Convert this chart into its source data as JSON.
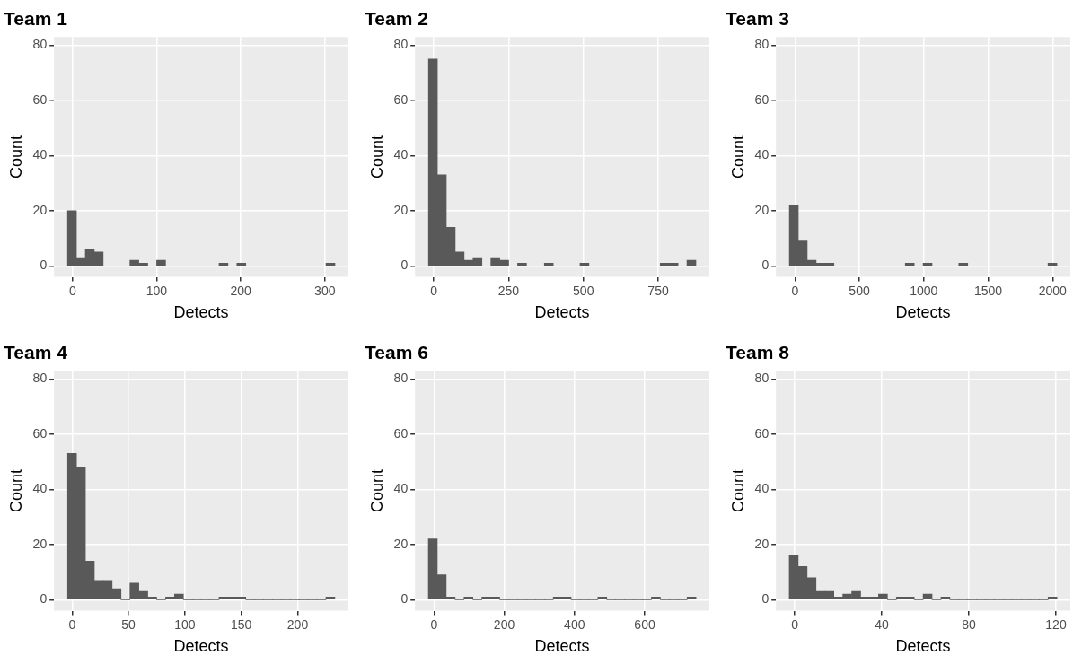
{
  "chart_data": [
    {
      "type": "histogram",
      "title": "Team 1",
      "xlabel": "Detects",
      "ylabel": "Count",
      "color": "#595959",
      "grid": true,
      "xlim": [
        -22,
        328
      ],
      "xticks": [
        0,
        100,
        200,
        300
      ],
      "ylim": [
        -4,
        83
      ],
      "yticks": [
        0,
        20,
        40,
        60,
        80
      ],
      "bins": [
        -6,
        4.6,
        15.2,
        25.8,
        36.4,
        47,
        57.6,
        68.2,
        78.8,
        89.4,
        100,
        110.6,
        121.2,
        131.8,
        142.4,
        153,
        163.6,
        174.2,
        184.8,
        195.4,
        206,
        216.6,
        227.2,
        237.8,
        248.4,
        259,
        269.6,
        280.2,
        290.8,
        301.4,
        312
      ],
      "values": [
        20,
        3,
        6,
        5,
        0,
        0,
        0,
        2,
        1,
        0,
        2,
        0,
        0,
        0,
        0,
        0,
        0,
        1,
        0,
        1,
        0,
        0,
        0,
        0,
        0,
        0,
        0,
        0,
        0,
        1
      ]
    },
    {
      "type": "histogram",
      "title": "Team 2",
      "xlabel": "Detects",
      "ylabel": "Count",
      "color": "#595959",
      "grid": true,
      "xlim": [
        -63,
        921
      ],
      "xticks": [
        0,
        250,
        500,
        750
      ],
      "ylim": [
        -4,
        83
      ],
      "yticks": [
        0,
        20,
        40,
        60,
        80
      ],
      "bins": [
        -18,
        11.8,
        41.6,
        71.4,
        101.2,
        131,
        160.8,
        190.6,
        220.4,
        250.2,
        280,
        309.8,
        339.6,
        369.4,
        399.2,
        429,
        458.8,
        488.6,
        518.4,
        548.2,
        578,
        607.8,
        637.6,
        667.4,
        697.2,
        727,
        756.8,
        786.6,
        816.4,
        846.2,
        876
      ],
      "values": [
        75,
        33,
        14,
        5,
        2,
        3,
        0,
        3,
        2,
        0,
        1,
        0,
        0,
        1,
        0,
        0,
        0,
        1,
        0,
        0,
        0,
        0,
        0,
        0,
        0,
        0,
        1,
        1,
        0,
        2
      ]
    },
    {
      "type": "histogram",
      "title": "Team 3",
      "xlabel": "Detects",
      "ylabel": "Count",
      "color": "#595959",
      "grid": true,
      "xlim": [
        -147,
        2137
      ],
      "xticks": [
        0,
        500,
        1000,
        1500,
        2000
      ],
      "ylim": [
        -4,
        83
      ],
      "yticks": [
        0,
        20,
        40,
        60,
        80
      ],
      "bins": [
        -43,
        26.2,
        95.4,
        164.6,
        233.8,
        303,
        372.2,
        441.4,
        510.6,
        579.8,
        649,
        718.2,
        787.4,
        856.6,
        925.8,
        995,
        1064.2,
        1133.4,
        1202.6,
        1271.8,
        1341,
        1410.2,
        1479.4,
        1548.6,
        1617.8,
        1687,
        1756.2,
        1825.4,
        1894.6,
        1963.8,
        2033
      ],
      "values": [
        22,
        9,
        2,
        1,
        1,
        0,
        0,
        0,
        0,
        0,
        0,
        0,
        0,
        1,
        0,
        1,
        0,
        0,
        0,
        1,
        0,
        0,
        0,
        0,
        0,
        0,
        0,
        0,
        0,
        1
      ]
    },
    {
      "type": "histogram",
      "title": "Team 4",
      "xlabel": "Detects",
      "ylabel": "Count",
      "color": "#595959",
      "grid": true,
      "xlim": [
        -16,
        245
      ],
      "xticks": [
        0,
        50,
        100,
        150,
        200
      ],
      "ylim": [
        -4,
        83
      ],
      "yticks": [
        0,
        20,
        40,
        60,
        80
      ],
      "bins": [
        -4,
        3.9,
        11.8,
        19.7,
        27.6,
        35.5,
        43.4,
        51.3,
        59.2,
        67.1,
        75,
        82.9,
        90.8,
        98.7,
        106.6,
        114.5,
        122.4,
        130.3,
        138.2,
        146.1,
        154,
        161.9,
        169.8,
        177.7,
        185.6,
        193.5,
        201.4,
        209.3,
        217.2,
        225.1,
        233
      ],
      "values": [
        53,
        48,
        14,
        7,
        7,
        4,
        0,
        6,
        3,
        1,
        0,
        1,
        2,
        0,
        0,
        0,
        0,
        1,
        1,
        1,
        0,
        0,
        0,
        0,
        0,
        0,
        0,
        0,
        0,
        1
      ]
    },
    {
      "type": "histogram",
      "title": "Team 6",
      "xlabel": "Detects",
      "ylabel": "Count",
      "color": "#595959",
      "grid": true,
      "xlim": [
        -54,
        784
      ],
      "xticks": [
        0,
        200,
        400,
        600
      ],
      "ylim": [
        -4,
        83
      ],
      "yticks": [
        0,
        20,
        40,
        60,
        80
      ],
      "bins": [
        -16,
        9.4,
        34.8,
        60.2,
        85.6,
        111,
        136.4,
        161.8,
        187.2,
        212.6,
        238,
        263.4,
        288.8,
        314.2,
        339.6,
        365,
        390.4,
        415.8,
        441.2,
        466.6,
        492,
        517.4,
        542.8,
        568.2,
        593.6,
        619,
        644.4,
        669.8,
        695.2,
        720.6,
        746
      ],
      "values": [
        22,
        9,
        1,
        0,
        1,
        0,
        1,
        1,
        0,
        0,
        0,
        0,
        0,
        0,
        1,
        1,
        0,
        0,
        0,
        1,
        0,
        0,
        0,
        0,
        0,
        1,
        0,
        0,
        0,
        1
      ]
    },
    {
      "type": "histogram",
      "title": "Team 8",
      "xlabel": "Detects",
      "ylabel": "Count",
      "color": "#595959",
      "grid": true,
      "xlim": [
        -8.6,
        126.6
      ],
      "xticks": [
        0,
        40,
        80,
        120
      ],
      "ylim": [
        -4,
        83
      ],
      "yticks": [
        0,
        20,
        40,
        60,
        80
      ],
      "bins": [
        -2.5,
        1.6,
        5.7,
        9.8,
        13.9,
        18,
        22.1,
        26.2,
        30.3,
        34.4,
        38.5,
        42.6,
        46.7,
        50.8,
        54.9,
        59,
        63.1,
        67.2,
        71.3,
        75.4,
        79.5,
        83.6,
        87.7,
        91.8,
        95.9,
        100,
        104.1,
        108.2,
        112.3,
        116.4,
        120.5
      ],
      "values": [
        16,
        12,
        8,
        3,
        3,
        1,
        2,
        3,
        1,
        1,
        2,
        0,
        1,
        1,
        0,
        2,
        0,
        1,
        0,
        0,
        0,
        0,
        0,
        0,
        0,
        0,
        0,
        0,
        0,
        1
      ]
    }
  ]
}
